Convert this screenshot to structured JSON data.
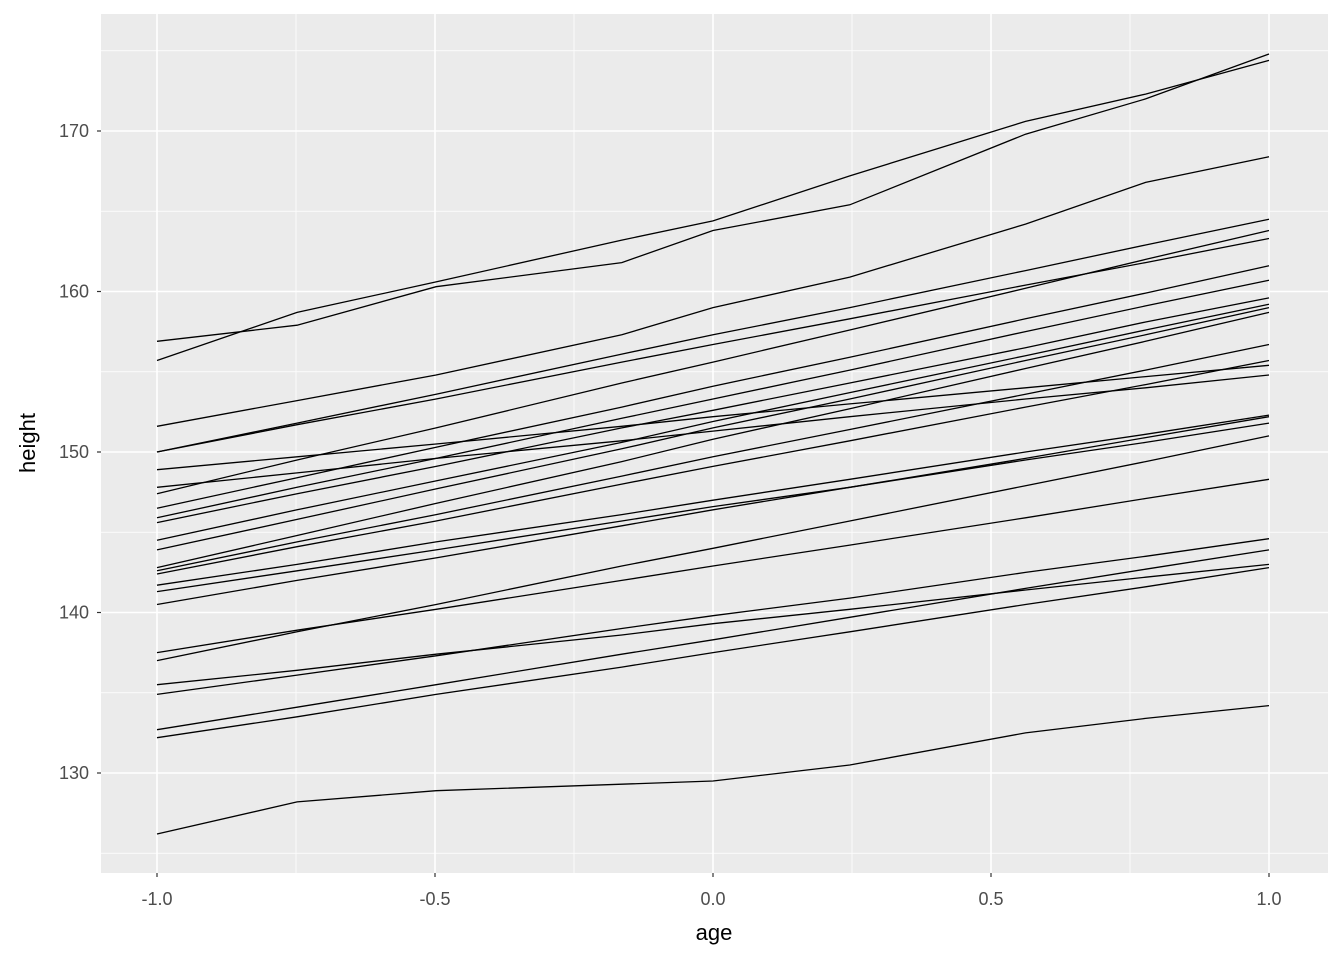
{
  "chart_data": {
    "type": "line",
    "title": "",
    "xlabel": "age",
    "ylabel": "height",
    "xlim": [
      -1.1,
      1.1
    ],
    "ylim": [
      124,
      177.5
    ],
    "x_ticks": [
      "-1.0",
      "-0.5",
      "0.0",
      "0.5",
      "1.0"
    ],
    "y_ticks": [
      "130",
      "140",
      "150",
      "160",
      "170"
    ],
    "grid": true,
    "background": "#ebebeb",
    "line_color": "#000000",
    "x": [
      -1,
      -0.748,
      -0.498,
      -0.164,
      0,
      0.246,
      0.562,
      0.778,
      1
    ],
    "series": [
      {
        "values": [
          156.9,
          157.9,
          160.3,
          161.8,
          163.8,
          165.4,
          169.8,
          172.0,
          174.8
        ]
      },
      {
        "values": [
          155.7,
          158.7,
          160.6,
          163.2,
          164.4,
          167.2,
          170.6,
          172.3,
          174.4
        ]
      },
      {
        "values": [
          151.6,
          153.2,
          154.8,
          157.3,
          159.0,
          160.9,
          164.2,
          166.8,
          168.4
        ]
      },
      {
        "values": [
          150.0,
          151.8,
          153.6,
          156.1,
          157.3,
          159.0,
          161.3,
          162.9,
          164.5
        ]
      },
      {
        "values": [
          150.0,
          151.7,
          153.3,
          155.6,
          156.7,
          158.3,
          160.4,
          161.8,
          163.3
        ]
      },
      {
        "values": [
          148.9,
          149.7,
          150.5,
          151.6,
          152.2,
          153.0,
          154.0,
          154.7,
          155.4
        ]
      },
      {
        "values": [
          147.8,
          148.7,
          149.6,
          150.7,
          151.3,
          152.2,
          153.3,
          154.0,
          154.8
        ]
      },
      {
        "values": [
          147.4,
          149.5,
          151.5,
          154.3,
          155.6,
          157.6,
          160.2,
          162.0,
          163.8
        ]
      },
      {
        "values": [
          146.5,
          148.4,
          150.3,
          152.8,
          154.1,
          155.9,
          158.3,
          159.9,
          161.6
        ]
      },
      {
        "values": [
          145.9,
          147.8,
          149.6,
          152.1,
          153.3,
          155.1,
          157.5,
          159.1,
          160.7
        ]
      },
      {
        "values": [
          145.6,
          147.4,
          149.1,
          151.5,
          152.6,
          154.3,
          156.5,
          158.1,
          159.6
        ]
      },
      {
        "values": [
          144.5,
          146.4,
          148.2,
          150.6,
          151.9,
          153.7,
          156.0,
          157.6,
          159.2
        ]
      },
      {
        "values": [
          143.9,
          145.8,
          147.7,
          150.2,
          151.5,
          153.3,
          155.7,
          157.3,
          159.0
        ]
      },
      {
        "values": [
          142.8,
          144.8,
          146.8,
          149.4,
          150.8,
          152.7,
          155.2,
          156.9,
          158.7
        ]
      },
      {
        "values": [
          142.6,
          144.4,
          146.1,
          148.5,
          149.7,
          151.4,
          153.6,
          155.1,
          156.7
        ]
      },
      {
        "values": [
          142.4,
          144.1,
          145.7,
          148.0,
          149.1,
          150.7,
          152.8,
          154.2,
          155.7
        ]
      },
      {
        "values": [
          141.7,
          143.0,
          144.4,
          146.1,
          147.0,
          148.3,
          150.0,
          151.1,
          152.3
        ]
      },
      {
        "values": [
          141.3,
          142.6,
          143.9,
          145.7,
          146.6,
          147.8,
          149.5,
          150.6,
          151.8
        ]
      },
      {
        "values": [
          140.5,
          142.0,
          143.4,
          145.4,
          146.4,
          147.8,
          149.6,
          150.9,
          152.2
        ]
      },
      {
        "values": [
          137.5,
          138.9,
          140.2,
          142.0,
          142.9,
          144.2,
          145.9,
          147.1,
          148.3
        ]
      },
      {
        "values": [
          137.0,
          138.8,
          140.5,
          142.9,
          144.0,
          145.7,
          147.9,
          149.4,
          151.0
        ]
      },
      {
        "values": [
          135.5,
          136.4,
          137.4,
          138.6,
          139.3,
          140.2,
          141.4,
          142.2,
          143.0
        ]
      },
      {
        "values": [
          134.9,
          136.1,
          137.3,
          139.0,
          139.8,
          140.9,
          142.5,
          143.5,
          144.6
        ]
      },
      {
        "values": [
          132.7,
          134.1,
          135.5,
          137.4,
          138.3,
          139.7,
          141.5,
          142.7,
          143.9
        ]
      },
      {
        "values": [
          132.2,
          133.5,
          134.9,
          136.6,
          137.5,
          138.8,
          140.5,
          141.6,
          142.8
        ]
      },
      {
        "values": [
          126.2,
          128.2,
          128.9,
          129.3,
          129.5,
          130.5,
          132.5,
          133.4,
          134.2
        ]
      }
    ]
  }
}
